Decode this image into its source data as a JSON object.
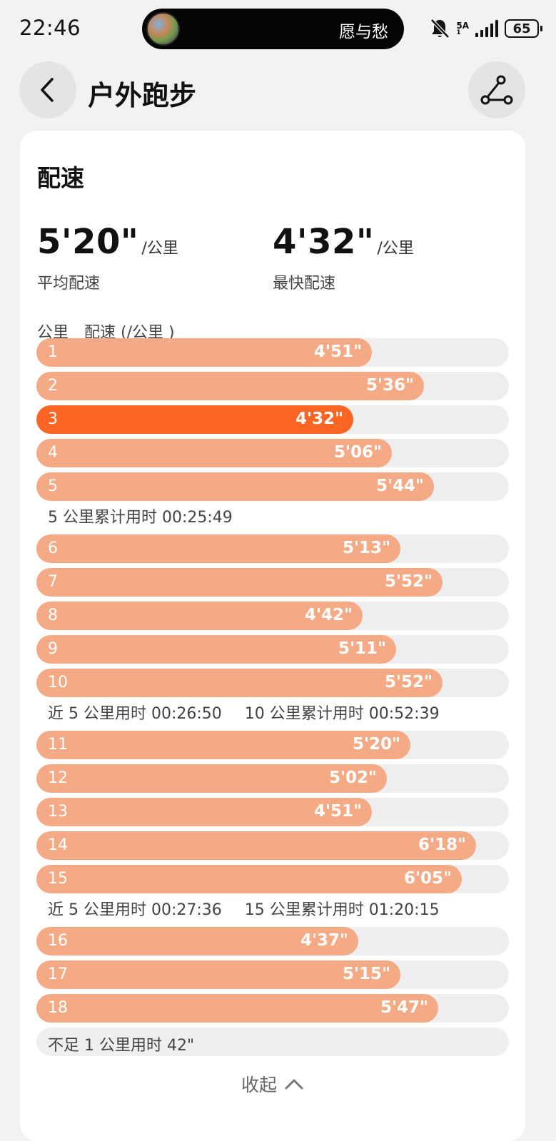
{
  "status_bar": {
    "time": "22:46",
    "now_playing": "愿与愁",
    "network_type": "5A",
    "network_sub": "1",
    "battery": "65"
  },
  "header": {
    "title": "户外跑步",
    "back_icon": "chevron-left-icon",
    "route_icon": "route-icon"
  },
  "card": {
    "title": "配速",
    "avg_pace": {
      "value": "5'20\"",
      "unit": "/公里",
      "label": "平均配速"
    },
    "fastest_pace": {
      "value": "4'32\"",
      "unit": "/公里",
      "label": "最快配速"
    },
    "col_km": "公里",
    "col_pace": "配速 (/公里 )",
    "colors": {
      "bar": "#f5aa86",
      "fastest_bar": "#fb6524",
      "track": "#eeeeee"
    },
    "splits": [
      {
        "km": "1",
        "pace": "4'51\"",
        "fill": 0.71
      },
      {
        "km": "2",
        "pace": "5'36\"",
        "fill": 0.82
      },
      {
        "km": "3",
        "pace": "4'32\"",
        "fill": 0.67,
        "fastest": true
      },
      {
        "km": "4",
        "pace": "5'06\"",
        "fill": 0.752
      },
      {
        "km": "5",
        "pace": "5'44\"",
        "fill": 0.841
      },
      {
        "km": "6",
        "pace": "5'13\"",
        "fill": 0.771
      },
      {
        "km": "7",
        "pace": "5'52\"",
        "fill": 0.86
      },
      {
        "km": "8",
        "pace": "4'42\"",
        "fill": 0.691
      },
      {
        "km": "9",
        "pace": "5'11\"",
        "fill": 0.761
      },
      {
        "km": "10",
        "pace": "5'52\"",
        "fill": 0.86
      },
      {
        "km": "11",
        "pace": "5'20\"",
        "fill": 0.791
      },
      {
        "km": "12",
        "pace": "5'02\"",
        "fill": 0.741
      },
      {
        "km": "13",
        "pace": "4'51\"",
        "fill": 0.71
      },
      {
        "km": "14",
        "pace": "6'18\"",
        "fill": 0.931
      },
      {
        "km": "15",
        "pace": "6'05\"",
        "fill": 0.901
      },
      {
        "km": "16",
        "pace": "4'37\"",
        "fill": 0.681
      },
      {
        "km": "17",
        "pace": "5'15\"",
        "fill": 0.771
      },
      {
        "km": "18",
        "pace": "5'47\"",
        "fill": 0.85
      }
    ],
    "summaries": [
      {
        "after_km": "5",
        "items": [
          "5 公里累计用时 00:25:49"
        ]
      },
      {
        "after_km": "10",
        "items": [
          "近 5 公里用时 00:26:50",
          "10 公里累计用时 00:52:39"
        ]
      },
      {
        "after_km": "15",
        "items": [
          "近 5 公里用时 00:27:36",
          "15 公里累计用时 01:20:15"
        ]
      }
    ],
    "remainder": "不足 1 公里用时 42\"",
    "collapse_label": "收起"
  }
}
